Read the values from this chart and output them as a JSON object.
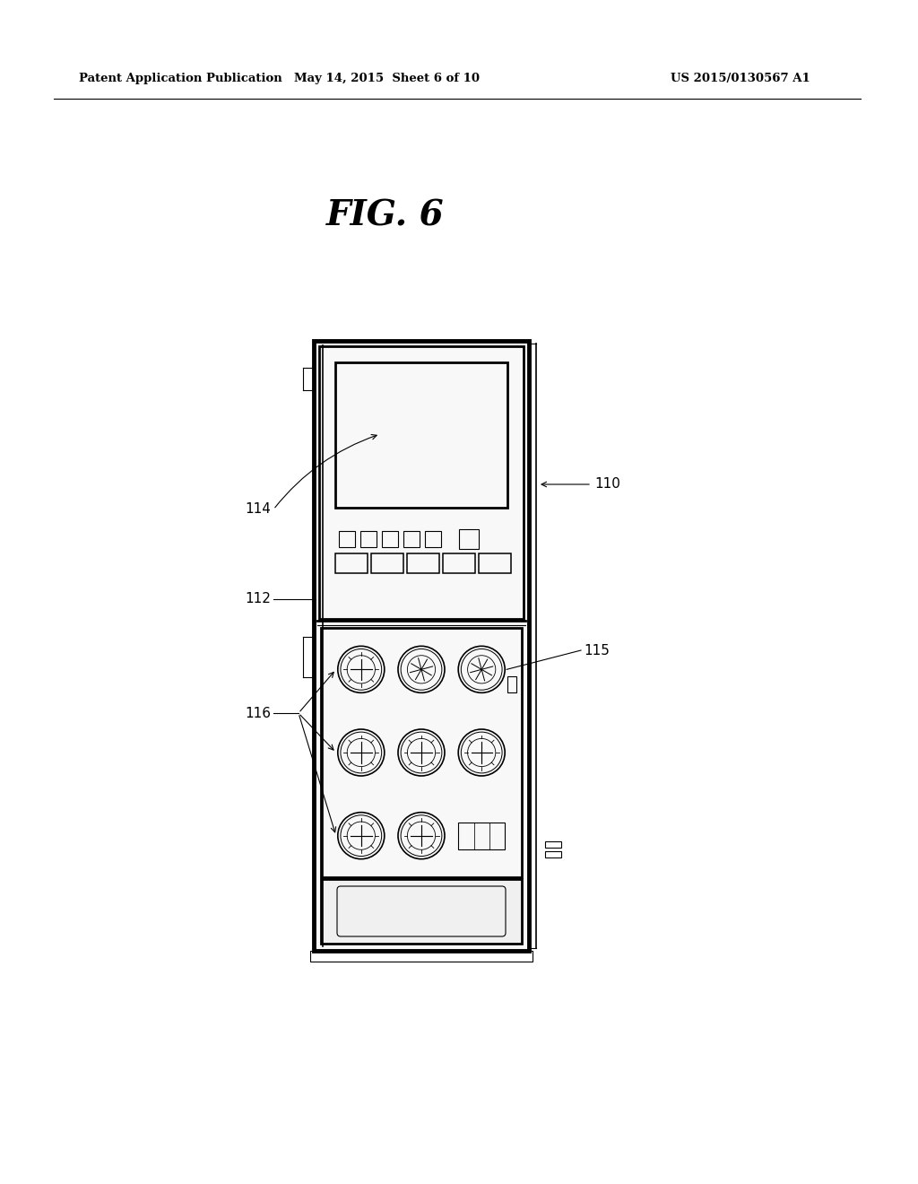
{
  "title": "FIG. 6",
  "header_left": "Patent Application Publication",
  "header_mid": "May 14, 2015  Sheet 6 of 10",
  "header_right": "US 2015/0130567 A1",
  "bg_color": "#ffffff",
  "line_color": "#000000",
  "label_110": "110",
  "label_112": "112",
  "label_114": "114",
  "label_115": "115",
  "label_116": "116"
}
